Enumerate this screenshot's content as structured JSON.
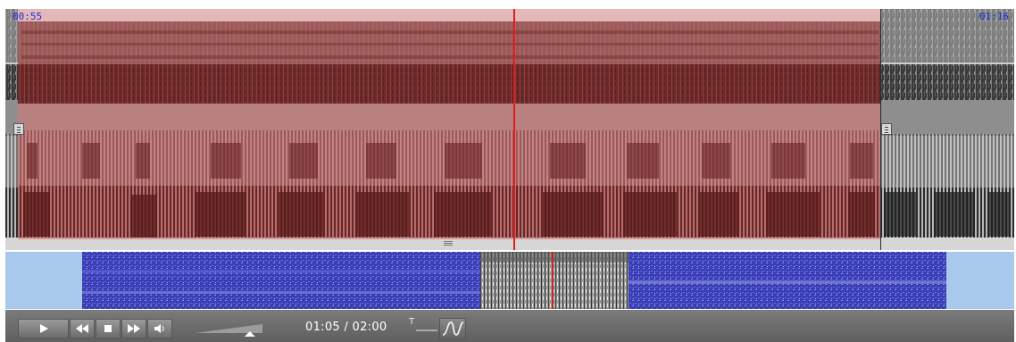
{
  "spectrogram": {
    "start_time": "00:55",
    "end_time": "01:16",
    "selection_color": "#b06a6a",
    "playhead_color": "#e01c1c",
    "time_label_color": "#1b2fd8"
  },
  "overview": {
    "background_color": "#a9c9ec",
    "spectrogram_color": "#3a3fb8"
  },
  "player": {
    "time_readout": "01:05 / 02:00",
    "t_label": "T",
    "buttons": [
      "play",
      "rewind",
      "stop",
      "fast-forward",
      "volume"
    ],
    "volume_level": 0.85,
    "bar_color": "#6a6a6a"
  }
}
